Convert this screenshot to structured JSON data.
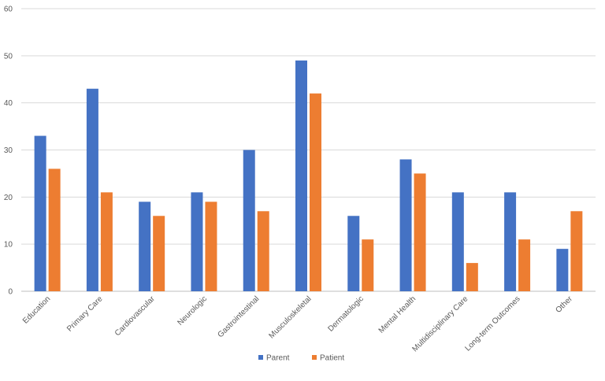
{
  "chart_data": {
    "type": "bar",
    "title": "",
    "xlabel": "",
    "ylabel": "",
    "ylim": [
      0,
      60
    ],
    "yticks": [
      0,
      10,
      20,
      30,
      40,
      50,
      60
    ],
    "grid": true,
    "legend_position": "bottom",
    "categories": [
      "Education",
      "Primary Care",
      "Cardiovascular",
      "Neurologic",
      "Gastrointestinal",
      "Musculoskeletal",
      "Dermatologic",
      "Mental Health",
      "Multidisciplinary Care",
      "Long-term Outcomes",
      "Other"
    ],
    "series": [
      {
        "name": "Parent",
        "color": "#4472C4",
        "values": [
          33,
          43,
          19,
          21,
          30,
          49,
          16,
          28,
          21,
          21,
          9
        ]
      },
      {
        "name": "Patient",
        "color": "#ED7D31",
        "values": [
          26,
          21,
          16,
          19,
          17,
          42,
          11,
          25,
          6,
          11,
          17
        ]
      }
    ]
  }
}
